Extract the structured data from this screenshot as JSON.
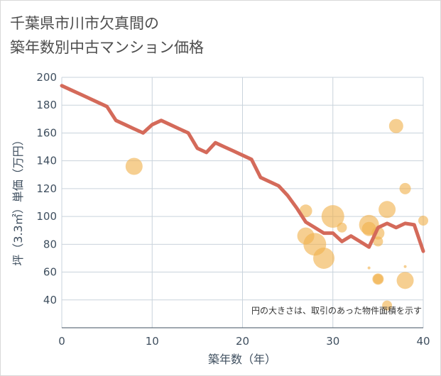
{
  "chart_data": {
    "type": "scatter",
    "title_line1": "千葉県市川市欠真間の",
    "title_line2": "築年数別中古マンション価格",
    "xlabel": "築年数（年）",
    "ylabel": "坪（3.3㎡）単価（万円）",
    "note": "円の大きさは、取引のあった物件面積を示す",
    "xlim": [
      0,
      40
    ],
    "ylim": [
      20,
      200
    ],
    "x_ticks": [
      0,
      10,
      20,
      30,
      40
    ],
    "y_ticks": [
      40,
      60,
      80,
      100,
      120,
      140,
      160,
      180,
      200
    ],
    "grid": true,
    "colors": {
      "line": "#d46a5a",
      "bubble": "#f0b24e",
      "grid": "#c9d3dc",
      "text": "#3f4f5f"
    },
    "trend_line": {
      "x": [
        0,
        1,
        2,
        3,
        4,
        5,
        6,
        7,
        8,
        9,
        10,
        11,
        12,
        13,
        14,
        15,
        16,
        17,
        18,
        19,
        20,
        21,
        22,
        23,
        24,
        25,
        26,
        27,
        28,
        29,
        30,
        31,
        32,
        33,
        34,
        35,
        36,
        37,
        38,
        39,
        40
      ],
      "y": [
        194,
        191,
        188,
        185,
        182,
        179,
        169,
        166,
        163,
        160,
        166,
        169,
        166,
        163,
        160,
        149,
        146,
        153,
        150,
        147,
        144,
        141,
        128,
        125,
        122,
        115,
        106,
        96,
        92,
        88,
        88,
        82,
        86,
        82,
        78,
        92,
        95,
        92,
        95,
        94,
        75
      ]
    },
    "bubbles": [
      {
        "x": 8,
        "y": 136,
        "size": 12
      },
      {
        "x": 27,
        "y": 104,
        "size": 9
      },
      {
        "x": 27,
        "y": 86,
        "size": 12
      },
      {
        "x": 28,
        "y": 80,
        "size": 16
      },
      {
        "x": 29,
        "y": 70,
        "size": 15
      },
      {
        "x": 30,
        "y": 100,
        "size": 16
      },
      {
        "x": 31,
        "y": 92,
        "size": 7
      },
      {
        "x": 34,
        "y": 94,
        "size": 14
      },
      {
        "x": 34,
        "y": 91,
        "size": 10
      },
      {
        "x": 34,
        "y": 63,
        "size": 2
      },
      {
        "x": 35,
        "y": 88,
        "size": 9
      },
      {
        "x": 35,
        "y": 82,
        "size": 7
      },
      {
        "x": 35,
        "y": 55,
        "size": 7
      },
      {
        "x": 35,
        "y": 55,
        "size": 8
      },
      {
        "x": 36,
        "y": 105,
        "size": 12
      },
      {
        "x": 36,
        "y": 36,
        "size": 7
      },
      {
        "x": 37,
        "y": 165,
        "size": 10
      },
      {
        "x": 38,
        "y": 120,
        "size": 8
      },
      {
        "x": 38,
        "y": 64,
        "size": 2
      },
      {
        "x": 38,
        "y": 54,
        "size": 12
      },
      {
        "x": 40,
        "y": 97,
        "size": 7
      }
    ]
  }
}
